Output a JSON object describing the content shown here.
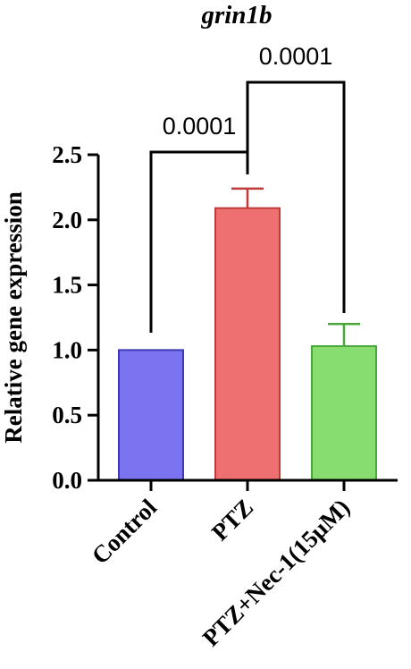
{
  "chart_data": {
    "type": "bar",
    "title": "grin1b",
    "xlabel": "",
    "ylabel": "Relative gene expression",
    "ylim": [
      0,
      2.5
    ],
    "yticks": [
      "0.0",
      "0.5",
      "1.0",
      "1.5",
      "2.0",
      "2.5"
    ],
    "categories": [
      "Control",
      "PTZ",
      "PTZ+Nec-1(15μM)"
    ],
    "values": [
      1.0,
      2.09,
      1.03
    ],
    "errors": [
      0,
      0.15,
      0.17
    ],
    "colors": {
      "fills": [
        "#7b73f0",
        "#ee7070",
        "#88dd70"
      ],
      "edges": [
        "#3d3ab8",
        "#c03a3a",
        "#4aa83a"
      ]
    },
    "comparisons": [
      {
        "from": 0,
        "to": 1,
        "label": "0.0001"
      },
      {
        "from": 1,
        "to": 2,
        "label": "0.0001"
      }
    ]
  }
}
